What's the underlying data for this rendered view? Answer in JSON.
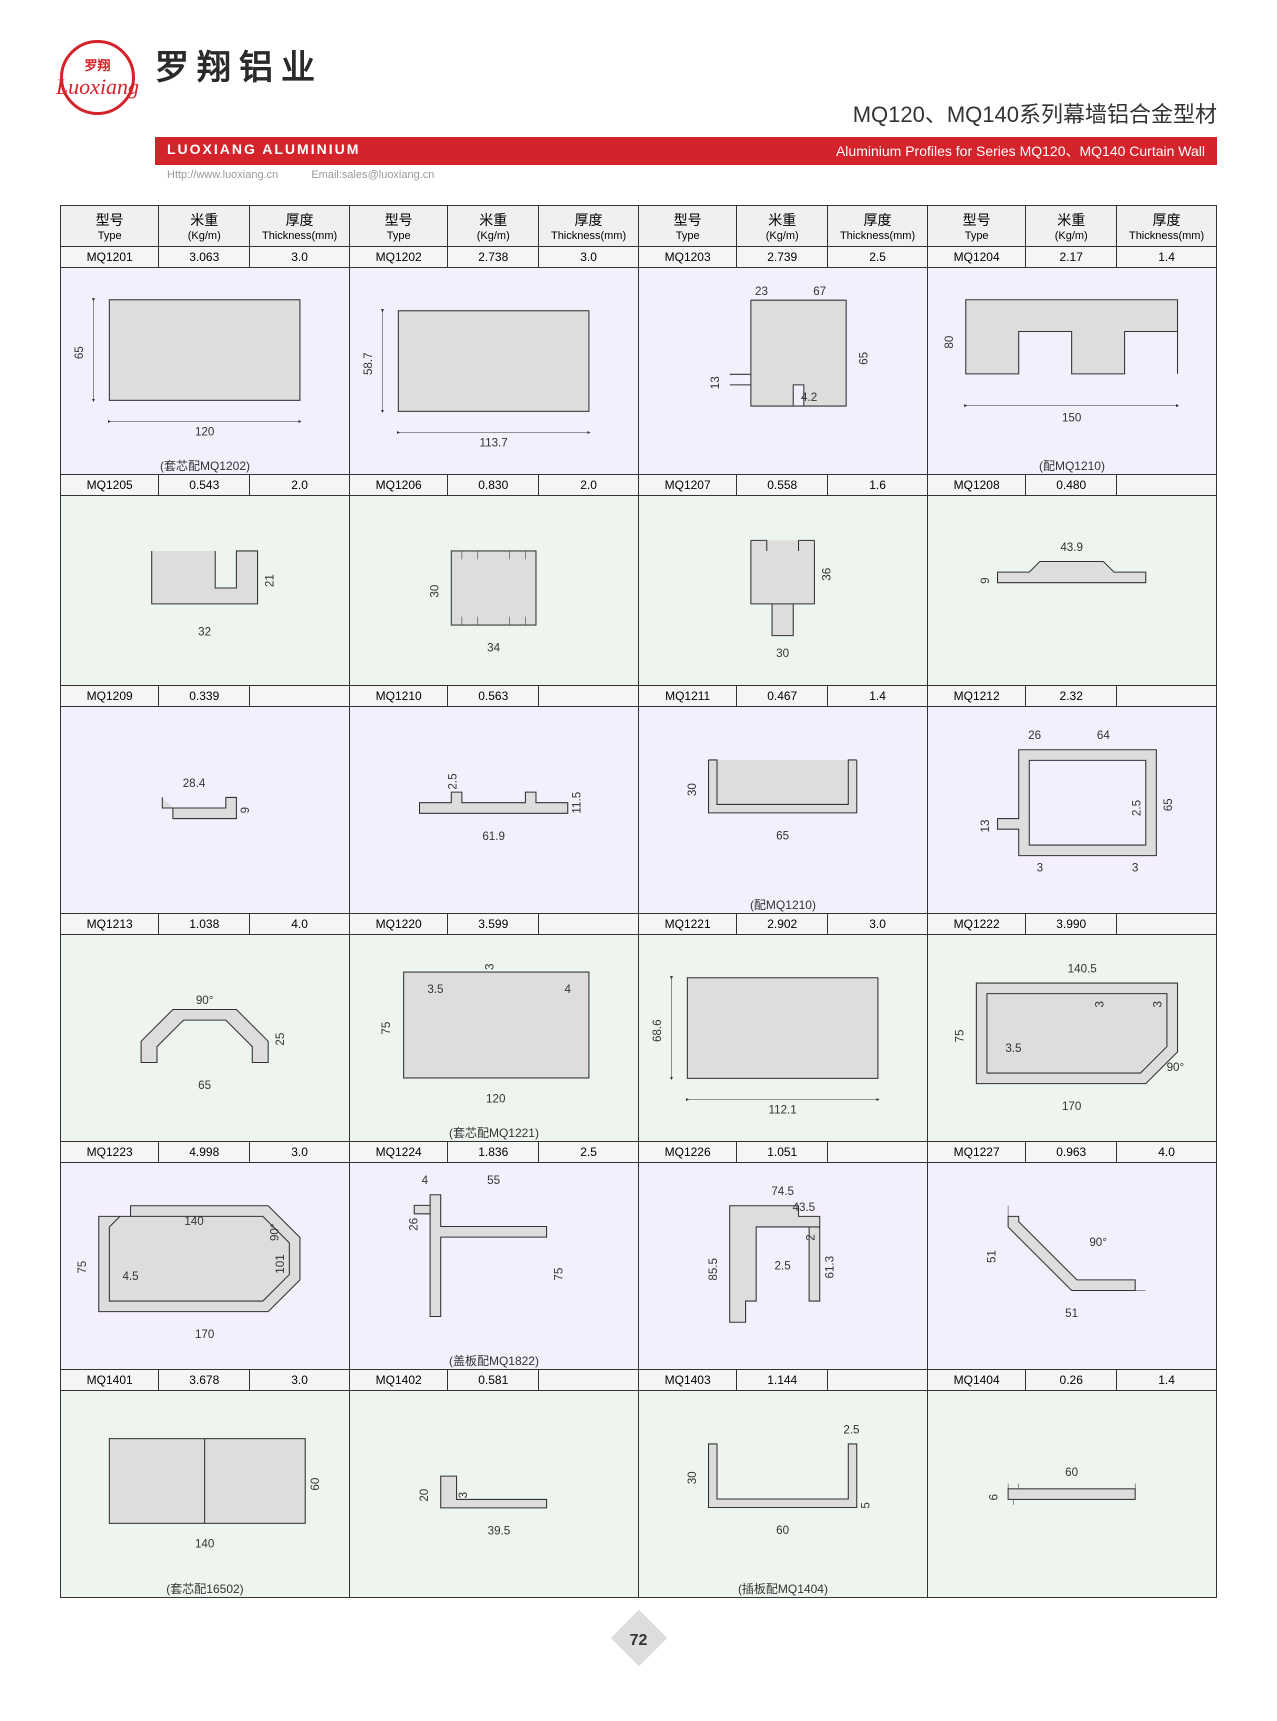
{
  "header": {
    "logo_top": "罗翔",
    "logo_script": "Luoxiang",
    "company_cn": "罗翔铝业",
    "company_en": "LUOXIANG ALUMINIUM",
    "title_cn": "MQ120、MQ140系列幕墙铝合金型材",
    "title_en": "Aluminium Profiles for Series MQ120、MQ140 Curtain Wall",
    "url": "Http://www.luoxiang.cn",
    "email": "Email:sales@luoxiang.cn"
  },
  "columns": {
    "type_cn": "型号",
    "type_en": "Type",
    "kgm_cn": "米重",
    "kgm_en": "(Kg/m)",
    "thk_cn": "厚度",
    "thk_en": "Thickness(mm)"
  },
  "rows": [
    {
      "bg": "alt-a",
      "cells": [
        {
          "type": "MQ1201",
          "kgm": "3.063",
          "thk": "3.0",
          "dims": {
            "w": "120",
            "h": "65"
          },
          "note": "(套芯配MQ1202)",
          "shape": "rect"
        },
        {
          "type": "MQ1202",
          "kgm": "2.738",
          "thk": "3.0",
          "dims": {
            "w": "113.7",
            "h": "58.7"
          },
          "shape": "rect"
        },
        {
          "type": "MQ1203",
          "kgm": "2.739",
          "thk": "2.5",
          "dims": {
            "w1": "23",
            "w2": "67",
            "h": "65",
            "h2": "13",
            "t": "4.2"
          },
          "shape": "tee"
        },
        {
          "type": "MQ1204",
          "kgm": "2.17",
          "thk": "1.4",
          "dims": {
            "w": "150",
            "h": "80"
          },
          "note": "(配MQ1210)",
          "shape": "mshape"
        }
      ]
    },
    {
      "bg": "alt-b",
      "cells": [
        {
          "type": "MQ1205",
          "kgm": "0.543",
          "thk": "2.0",
          "dims": {
            "w": "32",
            "h": "21"
          },
          "shape": "ushape"
        },
        {
          "type": "MQ1206",
          "kgm": "0.830",
          "thk": "2.0",
          "dims": {
            "w": "34",
            "h": "30"
          },
          "shape": "clip"
        },
        {
          "type": "MQ1207",
          "kgm": "0.558",
          "thk": "1.6",
          "dims": {
            "w": "30",
            "h": "36"
          },
          "shape": "tclip"
        },
        {
          "type": "MQ1208",
          "kgm": "0.480",
          "thk": "",
          "dims": {
            "w": "43.9",
            "h": "9"
          },
          "shape": "flat"
        }
      ]
    },
    {
      "bg": "alt-a",
      "cells": [
        {
          "type": "MQ1209",
          "kgm": "0.339",
          "thk": "",
          "dims": {
            "w": "28.4",
            "h": "9"
          },
          "shape": "small"
        },
        {
          "type": "MQ1210",
          "kgm": "0.563",
          "thk": "",
          "dims": {
            "w": "61.9",
            "h": "11.5",
            "t": "2.5"
          },
          "shape": "base"
        },
        {
          "type": "MQ1211",
          "kgm": "0.467",
          "thk": "1.4",
          "dims": {
            "w": "65",
            "h": "30"
          },
          "note": "(配MQ1210)",
          "shape": "uchannel"
        },
        {
          "type": "MQ1212",
          "kgm": "2.32",
          "thk": "",
          "dims": {
            "w1": "26",
            "w2": "64",
            "h": "65",
            "h2": "13",
            "t": "2.5",
            "b": "3"
          },
          "shape": "lshape"
        }
      ]
    },
    {
      "bg": "alt-b",
      "cells": [
        {
          "type": "MQ1213",
          "kgm": "1.038",
          "thk": "4.0",
          "dims": {
            "w": "65",
            "h": "25",
            "a": "90°"
          },
          "shape": "angle90"
        },
        {
          "type": "MQ1220",
          "kgm": "3.599",
          "thk": "",
          "dims": {
            "w": "120",
            "h": "75",
            "t1": "3.5",
            "t2": "3",
            "t3": "4"
          },
          "note": "(套芯配MQ1221)",
          "shape": "rectthick"
        },
        {
          "type": "MQ1221",
          "kgm": "2.902",
          "thk": "3.0",
          "dims": {
            "w": "112.1",
            "h": "68.6"
          },
          "shape": "rect"
        },
        {
          "type": "MQ1222",
          "kgm": "3.990",
          "thk": "",
          "dims": {
            "w": "170",
            "w2": "140.5",
            "h": "75",
            "t1": "3.5",
            "t2": "3",
            "t3": "3",
            "a": "90°"
          },
          "shape": "angledbox"
        }
      ]
    },
    {
      "bg": "alt-a",
      "cells": [
        {
          "type": "MQ1223",
          "kgm": "4.998",
          "thk": "3.0",
          "dims": {
            "w": "170",
            "w2": "140",
            "h": "75",
            "h2": "101",
            "t": "4.5",
            "a": "90°"
          },
          "shape": "angledbox2"
        },
        {
          "type": "MQ1224",
          "kgm": "1.836",
          "thk": "2.5",
          "dims": {
            "w1": "4",
            "w2": "55",
            "h": "75",
            "h2": "26"
          },
          "note": "(盖板配MQ1822)",
          "shape": "fshape"
        },
        {
          "type": "MQ1226",
          "kgm": "1.051",
          "thk": "",
          "dims": {
            "w": "74.5",
            "w2": "43.5",
            "h": "85.5",
            "h2": "61.3",
            "t1": "2",
            "t2": "2.5"
          },
          "shape": "complex"
        },
        {
          "type": "MQ1227",
          "kgm": "0.963",
          "thk": "4.0",
          "dims": {
            "w": "51",
            "h": "51",
            "a": "90°"
          },
          "shape": "lcorner"
        }
      ]
    },
    {
      "bg": "alt-b",
      "cells": [
        {
          "type": "MQ1401",
          "kgm": "3.678",
          "thk": "3.0",
          "dims": {
            "w": "140",
            "h": "60"
          },
          "note": "(套芯配16502)",
          "shape": "doublerect"
        },
        {
          "type": "MQ1402",
          "kgm": "0.581",
          "thk": "",
          "dims": {
            "w": "39.5",
            "h": "20",
            "t": "3"
          },
          "shape": "step"
        },
        {
          "type": "MQ1403",
          "kgm": "1.144",
          "thk": "",
          "dims": {
            "w": "60",
            "h": "30",
            "t1": "2.5",
            "t2": "5"
          },
          "note": "(插板配MQ1404)",
          "shape": "uwide"
        },
        {
          "type": "MQ1404",
          "kgm": "0.26",
          "thk": "1.4",
          "dims": {
            "w": "60",
            "h": "6"
          },
          "shape": "flatbar"
        }
      ]
    }
  ],
  "page_number": "72",
  "colors": {
    "red": "#d4232a",
    "altA": "#f4effc",
    "altB": "#eef5ee",
    "profile": "#d0d0d0"
  }
}
